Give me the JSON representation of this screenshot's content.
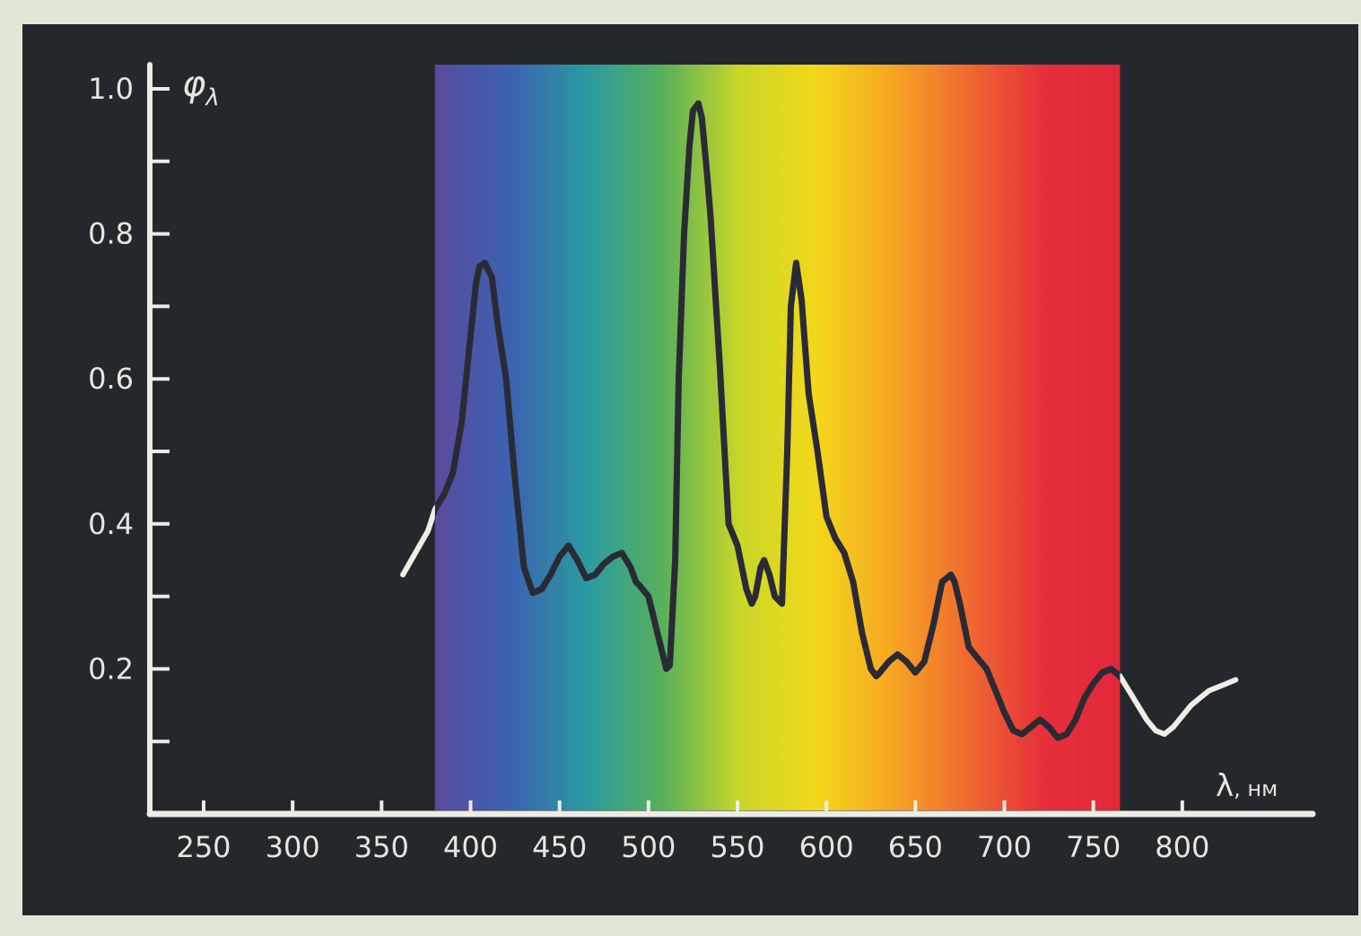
{
  "chart_data": {
    "type": "line",
    "xlabel": "λ, нм",
    "ylabel": "φλ",
    "ylabel_main": "φ",
    "ylabel_sub": "λ",
    "xlabel_main": "λ",
    "xlabel_unit": ", нм",
    "xlim": [
      200,
      850
    ],
    "ylim": [
      0,
      1.0
    ],
    "x_ticks": [
      250,
      300,
      350,
      400,
      450,
      500,
      550,
      600,
      650,
      700,
      750,
      800
    ],
    "x_tick_labels": [
      "250",
      "300",
      "350",
      "400",
      "450",
      "500",
      "550",
      "600",
      "650",
      "700",
      "750",
      "800"
    ],
    "y_ticks": [
      0.2,
      0.4,
      0.6,
      0.8,
      1.0
    ],
    "y_tick_labels": [
      "0.2",
      "0.4",
      "0.6",
      "0.8",
      "1.0"
    ],
    "y_minor_ticks": [
      0.1,
      0.3,
      0.5,
      0.7,
      0.9
    ],
    "grid": false,
    "spectrum_band": [
      380,
      765
    ],
    "colors": {
      "background": "#24272b",
      "axes": "#ecece4",
      "curve_inside_band": "#2a2a35",
      "curve_outside_band": "#f0eee4",
      "spectrum_stops": [
        "#5a4a9e",
        "#3b62b0",
        "#2a9aa0",
        "#58b05a",
        "#c9d628",
        "#f3d81a",
        "#f6a623",
        "#ef6a30",
        "#e62f3a",
        "#e0283a"
      ]
    },
    "series": [
      {
        "x": [
          362,
          369,
          376,
          380,
          385,
          390,
          395,
          400,
          403,
          405,
          408,
          412,
          415,
          420,
          425,
          430,
          435,
          440,
          445,
          450,
          455,
          460,
          465,
          470,
          475,
          480,
          485,
          490,
          493,
          495,
          500,
          505,
          510,
          512,
          515,
          517,
          520,
          523,
          525,
          528,
          530,
          533,
          535,
          540,
          545,
          550,
          555,
          558,
          560,
          563,
          565,
          568,
          571,
          575,
          578,
          580,
          583,
          586,
          590,
          595,
          600,
          605,
          610,
          615,
          620,
          625,
          628,
          630,
          635,
          640,
          645,
          650,
          655,
          660,
          665,
          670,
          672,
          675,
          680,
          685,
          690,
          695,
          700,
          705,
          710,
          715,
          720,
          725,
          730,
          735,
          740,
          745,
          750,
          755,
          760,
          765,
          770,
          775,
          780,
          785,
          790,
          795,
          800,
          805,
          810,
          815,
          820,
          825,
          830
        ],
        "y": [
          0.33,
          0.36,
          0.39,
          0.42,
          0.44,
          0.47,
          0.54,
          0.66,
          0.73,
          0.755,
          0.76,
          0.74,
          0.68,
          0.6,
          0.46,
          0.34,
          0.305,
          0.31,
          0.33,
          0.355,
          0.37,
          0.35,
          0.325,
          0.33,
          0.345,
          0.355,
          0.36,
          0.34,
          0.32,
          0.315,
          0.3,
          0.25,
          0.2,
          0.205,
          0.35,
          0.6,
          0.8,
          0.92,
          0.97,
          0.98,
          0.96,
          0.88,
          0.82,
          0.62,
          0.4,
          0.37,
          0.31,
          0.29,
          0.3,
          0.34,
          0.35,
          0.33,
          0.3,
          0.29,
          0.5,
          0.7,
          0.76,
          0.71,
          0.58,
          0.5,
          0.41,
          0.38,
          0.36,
          0.32,
          0.25,
          0.2,
          0.19,
          0.195,
          0.21,
          0.22,
          0.21,
          0.195,
          0.21,
          0.26,
          0.32,
          0.33,
          0.32,
          0.29,
          0.23,
          0.215,
          0.2,
          0.17,
          0.14,
          0.115,
          0.11,
          0.12,
          0.13,
          0.12,
          0.105,
          0.11,
          0.13,
          0.16,
          0.18,
          0.195,
          0.2,
          0.19,
          0.17,
          0.15,
          0.13,
          0.115,
          0.11,
          0.12,
          0.135,
          0.15,
          0.16,
          0.17,
          0.175,
          0.18,
          0.185
        ]
      }
    ]
  }
}
